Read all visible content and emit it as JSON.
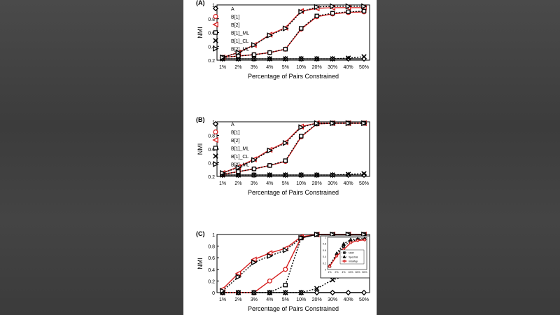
{
  "chart_data": [
    {
      "type": "line",
      "panel_label": "(A)",
      "categories": [
        "1%",
        "2%",
        "3%",
        "4%",
        "5%",
        "10%",
        "20%",
        "30%",
        "40%",
        "50%"
      ],
      "xlabel": "Percentage of Pairs Constrained",
      "ylabel": "NMI",
      "ylim": [
        0.2,
        1.0
      ],
      "yticks": [
        "0.2",
        "0.4",
        "0.6",
        "0.8",
        "1"
      ],
      "legend_position": "top-left",
      "series": [
        {
          "name": "A",
          "marker": "diamond",
          "color": "#000000",
          "style": "solid",
          "values": [
            0.22,
            0.22,
            0.22,
            0.22,
            0.22,
            0.22,
            0.22,
            0.22,
            0.22,
            0.22
          ]
        },
        {
          "name": "B[1]",
          "marker": "circle",
          "color": "#d62020",
          "style": "solid",
          "values": [
            0.24,
            0.26,
            0.28,
            0.31,
            0.36,
            0.65,
            0.83,
            0.87,
            0.89,
            0.9
          ]
        },
        {
          "name": "B[2]",
          "marker": "triangle-left",
          "color": "#d62020",
          "style": "solid",
          "values": [
            0.24,
            0.31,
            0.42,
            0.57,
            0.67,
            0.91,
            0.95,
            0.96,
            0.96,
            0.96
          ]
        },
        {
          "name": "B[1]_ML",
          "marker": "square",
          "color": "#000000",
          "style": "dotted",
          "values": [
            0.24,
            0.26,
            0.28,
            0.31,
            0.36,
            0.66,
            0.84,
            0.88,
            0.9,
            0.91
          ]
        },
        {
          "name": "B[1]_CL",
          "marker": "x",
          "color": "#000000",
          "style": "dotted",
          "values": [
            0.22,
            0.22,
            0.22,
            0.22,
            0.22,
            0.22,
            0.22,
            0.22,
            0.23,
            0.25
          ]
        },
        {
          "name": "B[2]_ML",
          "marker": "triangle-right",
          "color": "#000000",
          "style": "dotted",
          "values": [
            0.24,
            0.31,
            0.42,
            0.56,
            0.66,
            0.9,
            0.97,
            0.98,
            0.98,
            0.98
          ]
        }
      ]
    },
    {
      "type": "line",
      "panel_label": "(B)",
      "categories": [
        "1%",
        "2%",
        "3%",
        "4%",
        "5%",
        "10%",
        "20%",
        "30%",
        "40%",
        "50%"
      ],
      "xlabel": "Percentage of Pairs Constrained",
      "ylabel": "NMI",
      "ylim": [
        0.2,
        1.0
      ],
      "yticks": [
        "0.2",
        "0.4",
        "0.6",
        "0.8",
        "1"
      ],
      "legend_position": "top-left",
      "series": [
        {
          "name": "A",
          "marker": "diamond",
          "color": "#000000",
          "style": "solid",
          "values": [
            0.22,
            0.22,
            0.22,
            0.22,
            0.22,
            0.22,
            0.22,
            0.22,
            0.22,
            0.22
          ]
        },
        {
          "name": "B[1]",
          "marker": "circle",
          "color": "#d62020",
          "style": "solid",
          "values": [
            0.23,
            0.27,
            0.31,
            0.36,
            0.42,
            0.78,
            0.97,
            0.98,
            0.98,
            0.98
          ]
        },
        {
          "name": "B[2]",
          "marker": "triangle-left",
          "color": "#d62020",
          "style": "solid",
          "values": [
            0.25,
            0.34,
            0.45,
            0.59,
            0.7,
            0.93,
            0.98,
            0.98,
            0.98,
            0.98
          ]
        },
        {
          "name": "B[1]_ML",
          "marker": "square",
          "color": "#000000",
          "style": "dotted",
          "values": [
            0.23,
            0.27,
            0.31,
            0.36,
            0.43,
            0.79,
            0.97,
            0.98,
            0.98,
            0.98
          ]
        },
        {
          "name": "B[1]_CL",
          "marker": "x",
          "color": "#000000",
          "style": "dotted",
          "values": [
            0.22,
            0.22,
            0.22,
            0.22,
            0.22,
            0.22,
            0.22,
            0.22,
            0.23,
            0.24
          ]
        },
        {
          "name": "B[2]_ML",
          "marker": "triangle-right",
          "color": "#000000",
          "style": "dotted",
          "values": [
            0.25,
            0.33,
            0.44,
            0.58,
            0.69,
            0.92,
            0.98,
            0.98,
            0.98,
            0.98
          ]
        }
      ]
    },
    {
      "type": "line",
      "panel_label": "(C)",
      "categories": [
        "1%",
        "2%",
        "3%",
        "4%",
        "5%",
        "10%",
        "20%",
        "30%",
        "40%",
        "50%"
      ],
      "xlabel": "Percentage of Pairs Constrained",
      "ylabel": "NMI",
      "ylim": [
        0.0,
        1.0
      ],
      "yticks": [
        "0",
        "0.2",
        "0.4",
        "0.6",
        "0.8",
        "1"
      ],
      "series": [
        {
          "name": "A",
          "marker": "diamond",
          "color": "#000000",
          "style": "solid",
          "values": [
            0.0,
            0.0,
            0.0,
            0.0,
            0.0,
            0.0,
            0.0,
            0.0,
            0.0,
            0.0
          ]
        },
        {
          "name": "B[1]",
          "marker": "circle",
          "color": "#d62020",
          "style": "solid",
          "values": [
            0.0,
            0.0,
            0.0,
            0.2,
            0.4,
            0.95,
            1.0,
            1.0,
            1.0,
            1.0
          ]
        },
        {
          "name": "B[2]",
          "marker": "triangle-left",
          "color": "#d62020",
          "style": "solid",
          "values": [
            0.06,
            0.33,
            0.57,
            0.68,
            0.76,
            0.96,
            1.0,
            1.0,
            1.0,
            1.0
          ]
        },
        {
          "name": "B[1]_ML",
          "marker": "square",
          "color": "#000000",
          "style": "dotted",
          "values": [
            0.0,
            0.0,
            0.0,
            0.0,
            0.13,
            0.94,
            1.0,
            1.0,
            1.0,
            1.0
          ]
        },
        {
          "name": "B[1]_CL",
          "marker": "x",
          "color": "#000000",
          "style": "dotted",
          "values": [
            0.0,
            0.0,
            0.0,
            0.0,
            0.0,
            0.0,
            0.07,
            0.22,
            0.3,
            0.34
          ]
        },
        {
          "name": "B[2]_ML",
          "marker": "triangle-right",
          "color": "#000000",
          "style": "dotted",
          "values": [
            0.03,
            0.27,
            0.52,
            0.63,
            0.73,
            0.94,
            1.0,
            1.0,
            1.0,
            1.0
          ]
        }
      ],
      "inset": {
        "categories": [
          "1%",
          "2%",
          "4%",
          "10%",
          "30%",
          "50%"
        ],
        "yticks": [
          "0",
          "0.2",
          "0.4",
          "0.6",
          "0.8",
          "1"
        ],
        "ylim": [
          0.0,
          1.0
        ],
        "legend_position": "bottom-right",
        "series": [
          {
            "name": "NMF",
            "marker": "square",
            "color": "#000000",
            "style": "dotted",
            "values": [
              0.1,
              0.45,
              0.72,
              0.88,
              0.93,
              0.94
            ]
          },
          {
            "name": "Spectral",
            "marker": "triangle-up",
            "color": "#000000",
            "style": "dotted",
            "values": [
              0.12,
              0.5,
              0.8,
              0.93,
              0.95,
              0.96
            ]
          },
          {
            "name": "InfoMap",
            "marker": "circle",
            "color": "#d62020",
            "style": "solid",
            "values": [
              0.1,
              0.42,
              0.62,
              0.83,
              0.9,
              0.92
            ]
          }
        ]
      }
    }
  ]
}
